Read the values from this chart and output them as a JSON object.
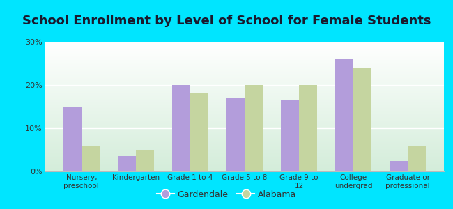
{
  "title": "School Enrollment by Level of School for Female Students",
  "categories": [
    "Nursery,\npreschool",
    "Kindergarten",
    "Grade 1 to 4",
    "Grade 5 to 8",
    "Grade 9 to\n12",
    "College\nundergrad",
    "Graduate or\nprofessional"
  ],
  "gardendale": [
    15,
    3.5,
    20,
    17,
    16.5,
    26,
    2.5
  ],
  "alabama": [
    6,
    5,
    18,
    20,
    20,
    24,
    6
  ],
  "gardendale_color": "#b39ddb",
  "alabama_color": "#c5d5a0",
  "background_outer": "#00e5ff",
  "background_inner_top": "#ffffff",
  "background_inner_bottom": "#d4edda",
  "title_fontsize": 13,
  "legend_labels": [
    "Gardendale",
    "Alabama"
  ],
  "ylim": [
    0,
    30
  ],
  "yticks": [
    0,
    10,
    20,
    30
  ],
  "ytick_labels": [
    "0%",
    "10%",
    "20%",
    "30%"
  ]
}
